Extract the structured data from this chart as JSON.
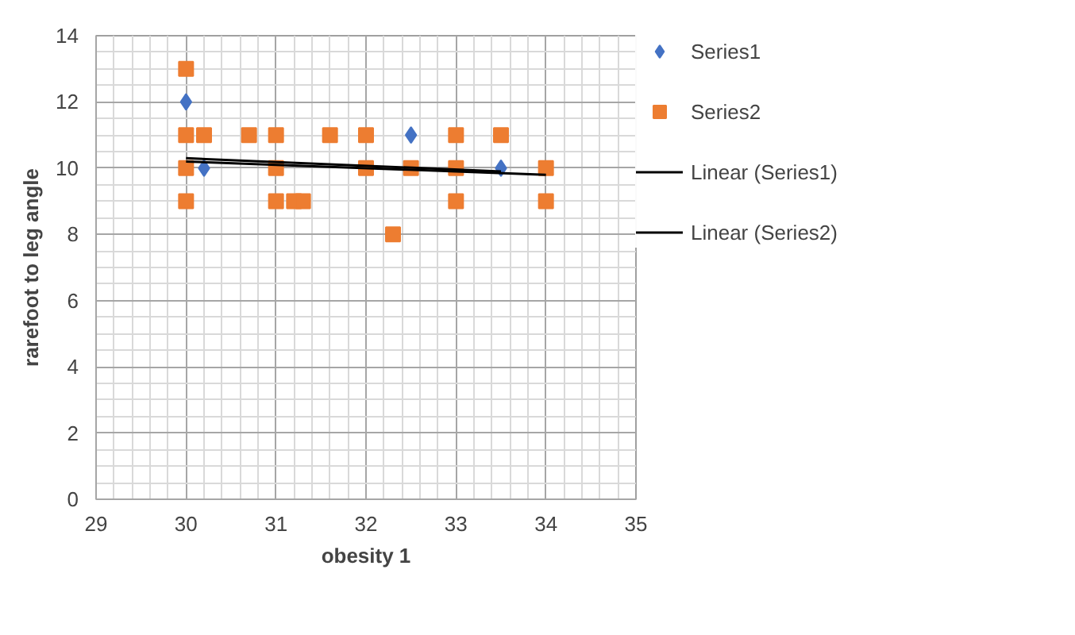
{
  "chart_data": {
    "type": "scatter",
    "xlabel": "obesity 1",
    "ylabel": "rarefoot to leg angle",
    "xlim": [
      29,
      35
    ],
    "ylim": [
      0,
      14
    ],
    "xticks": [
      29,
      30,
      31,
      32,
      33,
      34,
      35
    ],
    "yticks": [
      0,
      2,
      4,
      6,
      8,
      10,
      12,
      14
    ],
    "grid": true,
    "legend": "right",
    "series": [
      {
        "name": "Series1",
        "color": "#4472c4",
        "marker": "diamond",
        "x": [
          30,
          30.2,
          32.5,
          33.5
        ],
        "values": [
          12,
          10,
          11,
          10
        ]
      },
      {
        "name": "Series2",
        "color": "#ed7d31",
        "marker": "square",
        "x": [
          30,
          30,
          30,
          30,
          30.2,
          30.7,
          31,
          31,
          31,
          31.2,
          31.3,
          31.6,
          32,
          32,
          32.3,
          32.5,
          33,
          33,
          33,
          33.5,
          34,
          34
        ],
        "values": [
          13,
          11,
          10,
          9,
          11,
          11,
          11,
          10,
          9,
          9,
          9,
          11,
          11,
          10,
          8,
          10,
          11,
          10,
          9,
          11,
          10,
          9
        ]
      },
      {
        "name": "Linear (Series1)",
        "type": "line",
        "color": "#000000",
        "x": [
          30,
          33.5
        ],
        "values": [
          10.3,
          9.9
        ]
      },
      {
        "name": "Linear (Series2)",
        "type": "line",
        "color": "#000000",
        "x": [
          30,
          34
        ],
        "values": [
          10.2,
          9.8
        ]
      }
    ]
  }
}
